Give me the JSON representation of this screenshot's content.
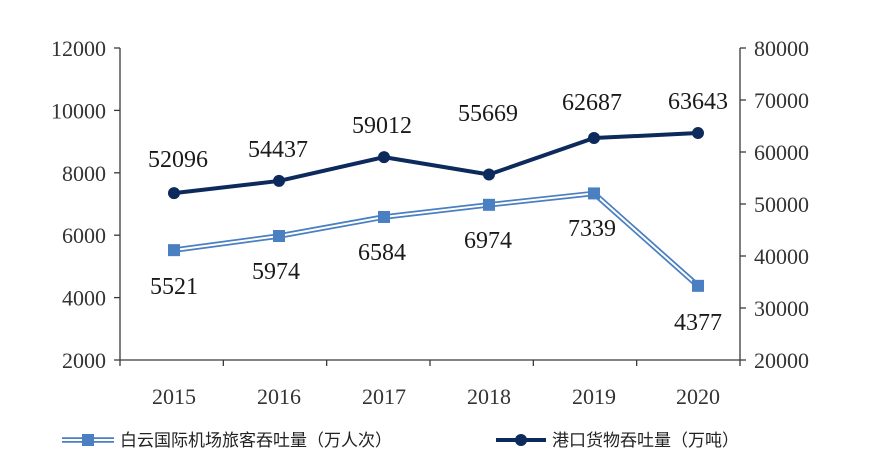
{
  "chart_data": {
    "type": "line",
    "categories": [
      "2015",
      "2016",
      "2017",
      "2018",
      "2019",
      "2020"
    ],
    "y_left": {
      "ylim": [
        2000,
        12000
      ],
      "ticks": [
        2000,
        4000,
        6000,
        8000,
        10000,
        12000
      ]
    },
    "y_right": {
      "ylim": [
        20000,
        80000
      ],
      "ticks": [
        20000,
        30000,
        40000,
        50000,
        60000,
        70000,
        80000
      ]
    },
    "series": [
      {
        "name": "白云国际机场旅客吞吐量（万人次）",
        "axis": "left",
        "values": [
          5521,
          5974,
          6584,
          6974,
          7339,
          4377
        ],
        "labels": [
          "5521",
          "5974",
          "6584",
          "6974",
          "7339",
          "4377"
        ],
        "marker": "square",
        "style": "double-line",
        "color": "#4a7fc1"
      },
      {
        "name": "港口货物吞吐量（万吨）",
        "axis": "right",
        "values": [
          52096,
          54437,
          59012,
          55669,
          62687,
          63643
        ],
        "labels": [
          "52096",
          "54437",
          "59012",
          "55669",
          "62687",
          "63643"
        ],
        "marker": "circle",
        "style": "solid",
        "color": "#0d2a5c"
      }
    ],
    "grid": false,
    "legend_position": "bottom",
    "title": "",
    "xlabel": "",
    "ylabel": ""
  }
}
